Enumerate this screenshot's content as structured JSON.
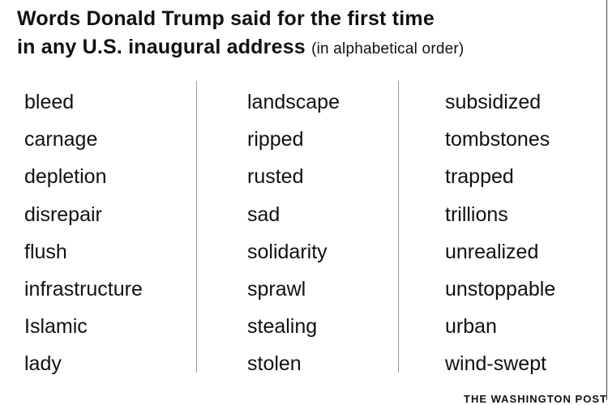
{
  "title": {
    "line1": "Words Donald Trump said for the first time",
    "line2": "in any U.S. inaugural address",
    "subtitle": "(in alphabetical order)"
  },
  "columns": [
    [
      "bleed",
      "carnage",
      "depletion",
      "disrepair",
      "flush",
      "infrastructure",
      "Islamic",
      "lady"
    ],
    [
      "landscape",
      "ripped",
      "rusted",
      "sad",
      "solidarity",
      "sprawl",
      "stealing",
      "stolen"
    ],
    [
      "subsidized",
      "tombstones",
      "trapped",
      "trillions",
      "unrealized",
      "unstoppable",
      "urban",
      "wind-swept"
    ]
  ],
  "credit": "THE WASHINGTON POST"
}
